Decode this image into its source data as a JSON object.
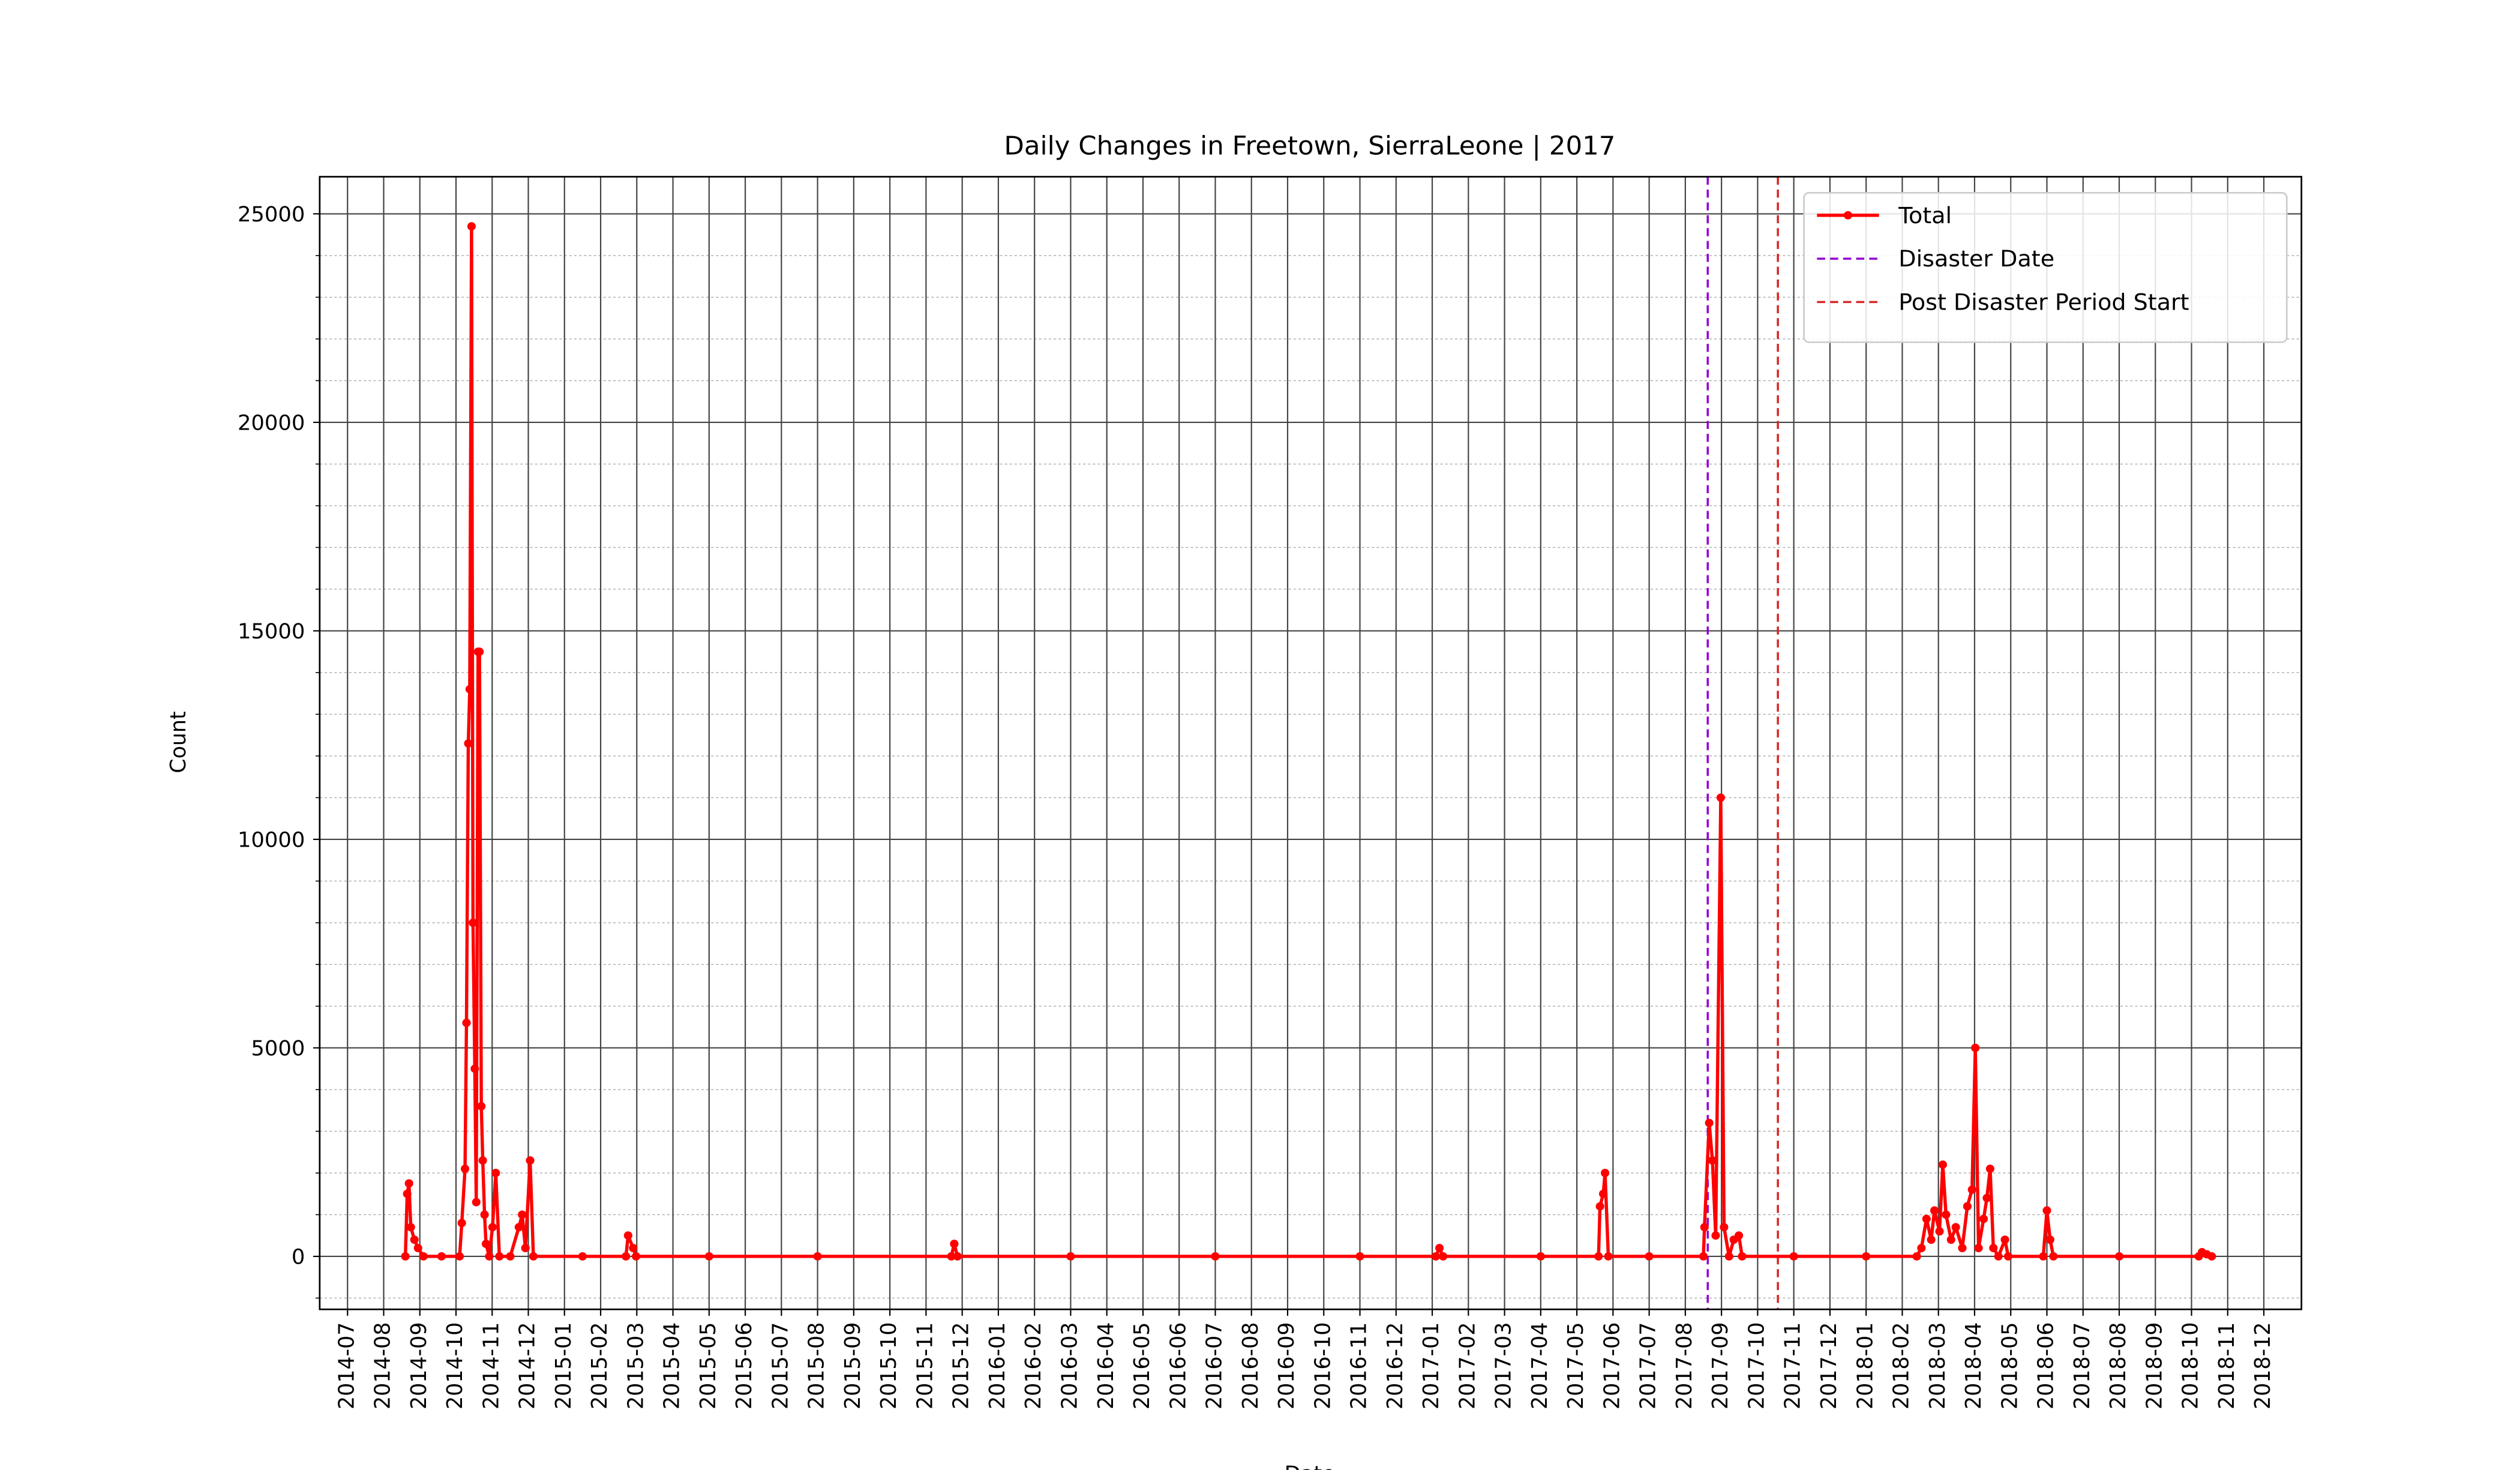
{
  "chart_data": {
    "type": "line",
    "title": "Daily Changes in Freetown, SierraLeone | 2017",
    "xlabel": "Date",
    "ylabel": "Count",
    "xlim": [
      -0.77,
      54.04
    ],
    "ylim": [
      -1270,
      25890
    ],
    "xticks": [
      {
        "value": 0,
        "label": "2014-07"
      },
      {
        "value": 1,
        "label": "2014-08"
      },
      {
        "value": 2,
        "label": "2014-09"
      },
      {
        "value": 3,
        "label": "2014-10"
      },
      {
        "value": 4,
        "label": "2014-11"
      },
      {
        "value": 5,
        "label": "2014-12"
      },
      {
        "value": 6,
        "label": "2015-01"
      },
      {
        "value": 7,
        "label": "2015-02"
      },
      {
        "value": 8,
        "label": "2015-03"
      },
      {
        "value": 9,
        "label": "2015-04"
      },
      {
        "value": 10,
        "label": "2015-05"
      },
      {
        "value": 11,
        "label": "2015-06"
      },
      {
        "value": 12,
        "label": "2015-07"
      },
      {
        "value": 13,
        "label": "2015-08"
      },
      {
        "value": 14,
        "label": "2015-09"
      },
      {
        "value": 15,
        "label": "2015-10"
      },
      {
        "value": 16,
        "label": "2015-11"
      },
      {
        "value": 17,
        "label": "2015-12"
      },
      {
        "value": 18,
        "label": "2016-01"
      },
      {
        "value": 19,
        "label": "2016-02"
      },
      {
        "value": 20,
        "label": "2016-03"
      },
      {
        "value": 21,
        "label": "2016-04"
      },
      {
        "value": 22,
        "label": "2016-05"
      },
      {
        "value": 23,
        "label": "2016-06"
      },
      {
        "value": 24,
        "label": "2016-07"
      },
      {
        "value": 25,
        "label": "2016-08"
      },
      {
        "value": 26,
        "label": "2016-09"
      },
      {
        "value": 27,
        "label": "2016-10"
      },
      {
        "value": 28,
        "label": "2016-11"
      },
      {
        "value": 29,
        "label": "2016-12"
      },
      {
        "value": 30,
        "label": "2017-01"
      },
      {
        "value": 31,
        "label": "2017-02"
      },
      {
        "value": 32,
        "label": "2017-03"
      },
      {
        "value": 33,
        "label": "2017-04"
      },
      {
        "value": 34,
        "label": "2017-05"
      },
      {
        "value": 35,
        "label": "2017-06"
      },
      {
        "value": 36,
        "label": "2017-07"
      },
      {
        "value": 37,
        "label": "2017-08"
      },
      {
        "value": 38,
        "label": "2017-09"
      },
      {
        "value": 39,
        "label": "2017-10"
      },
      {
        "value": 40,
        "label": "2017-11"
      },
      {
        "value": 41,
        "label": "2017-12"
      },
      {
        "value": 42,
        "label": "2018-01"
      },
      {
        "value": 43,
        "label": "2018-02"
      },
      {
        "value": 44,
        "label": "2018-03"
      },
      {
        "value": 45,
        "label": "2018-04"
      },
      {
        "value": 46,
        "label": "2018-05"
      },
      {
        "value": 47,
        "label": "2018-06"
      },
      {
        "value": 48,
        "label": "2018-07"
      },
      {
        "value": 49,
        "label": "2018-08"
      },
      {
        "value": 50,
        "label": "2018-09"
      },
      {
        "value": 51,
        "label": "2018-10"
      },
      {
        "value": 52,
        "label": "2018-11"
      },
      {
        "value": 53,
        "label": "2018-12"
      }
    ],
    "yticks": [
      0,
      5000,
      10000,
      15000,
      20000,
      25000
    ],
    "yminorticks": [
      -1000,
      1000,
      2000,
      3000,
      4000,
      6000,
      7000,
      8000,
      9000,
      11000,
      12000,
      13000,
      14000,
      16000,
      17000,
      18000,
      19000,
      21000,
      22000,
      23000,
      24000
    ],
    "grid": true,
    "legend": "upper right",
    "x": [
      1.6,
      1.65,
      1.7,
      1.75,
      1.85,
      1.95,
      2.1,
      2.6,
      3.1,
      3.16,
      3.25,
      3.29,
      3.34,
      3.38,
      3.43,
      3.47,
      3.52,
      3.56,
      3.61,
      3.65,
      3.7,
      3.74,
      3.79,
      3.83,
      3.92,
      4.01,
      4.1,
      4.2,
      4.5,
      4.74,
      4.83,
      4.92,
      5.05,
      5.14,
      6.5,
      7.7,
      7.76,
      7.9,
      7.98,
      10,
      13,
      16.7,
      16.78,
      16.87,
      20,
      24,
      28,
      30.1,
      30.2,
      30.3,
      33,
      34.6,
      34.64,
      34.73,
      34.78,
      34.87,
      36,
      37.5,
      37.53,
      37.66,
      37.75,
      37.84,
      37.98,
      38.07,
      38.21,
      38.34,
      38.48,
      38.57,
      40,
      42,
      43.4,
      43.53,
      43.67,
      43.8,
      43.89,
      44.03,
      44.12,
      44.21,
      44.35,
      44.48,
      44.66,
      44.8,
      44.93,
      45.02,
      45.11,
      45.25,
      45.34,
      45.43,
      45.52,
      45.66,
      45.84,
      45.93,
      46.9,
      47.0,
      47.09,
      47.18,
      49,
      51.2,
      51.29,
      51.42,
      51.56
    ],
    "series": [
      {
        "name": "Total",
        "color": "#ff0000",
        "values": [
          0,
          1500,
          1750,
          700,
          400,
          200,
          0,
          0,
          0,
          800,
          2100,
          5600,
          12300,
          13600,
          24700,
          8000,
          4500,
          1300,
          14500,
          14500,
          3600,
          2300,
          1000,
          300,
          0,
          700,
          2000,
          0,
          0,
          700,
          1000,
          200,
          2300,
          0,
          0,
          0,
          500,
          200,
          0,
          0,
          0,
          0,
          300,
          0,
          0,
          0,
          0,
          0,
          200,
          0,
          0,
          0,
          1200,
          1500,
          2000,
          0,
          0,
          0,
          700,
          3200,
          2300,
          500,
          11000,
          700,
          0,
          400,
          500,
          0,
          0,
          0,
          0,
          200,
          900,
          400,
          1100,
          600,
          2200,
          1000,
          400,
          700,
          200,
          1200,
          1600,
          5000,
          200,
          900,
          1400,
          2100,
          200,
          0,
          400,
          0,
          0,
          1100,
          400,
          0,
          0,
          0,
          100,
          50,
          0
        ]
      }
    ],
    "vlines": [
      {
        "name": "Disaster Date",
        "color": "#9400d3",
        "x": 37.62
      },
      {
        "name": "Post Disaster Period Start",
        "color": "#d62728",
        "x": 39.56
      }
    ]
  }
}
